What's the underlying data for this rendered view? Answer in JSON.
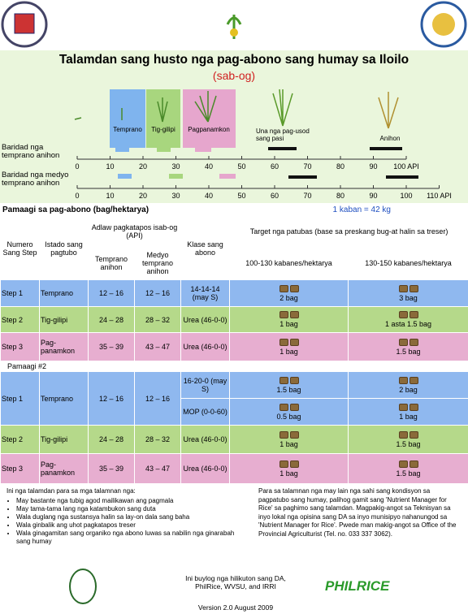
{
  "header": {
    "title": "Talamdan sang husto nga pag-abono sang humay sa Iloilo",
    "subtitle": "(sab-og)"
  },
  "stages": [
    "Temprano",
    "Tig-gilipi",
    "Pagpanamkon",
    "Una nga pag-usod sang pasi",
    "Anihon"
  ],
  "timeline": {
    "rows": [
      {
        "label": "Baridad nga temprano anihon",
        "ticks": [
          0,
          10,
          20,
          30,
          40,
          50,
          60,
          70,
          80,
          90,
          "100 API"
        ]
      },
      {
        "label": "Baridad nga medyo temprano anihon",
        "ticks": [
          0,
          10,
          20,
          30,
          40,
          50,
          60,
          70,
          80,
          90,
          100,
          "110 API"
        ]
      }
    ]
  },
  "table": {
    "title": "Pamaagi sa pag-abono (bag/hektarya)",
    "unit_note": "1 kaban = 42 kg",
    "headers": {
      "step": "Numero Sang Step",
      "stage": "Istado sang pagtubo",
      "api": "Adlaw pagkatapos isab-og (API)",
      "early": "Temprano anihon",
      "medium": "Medyo temprano anihon",
      "fertilizer": "Klase sang abono",
      "target": "Target nga patubas (base sa preskang bug-at halin sa treser)",
      "low": "100-130 kabanes/hektarya",
      "high": "130-150 kabanes/hektarya"
    },
    "method1": [
      {
        "step": "Step 1",
        "stage": "Temprano",
        "early": "12 – 16",
        "medium": "12 – 16",
        "fertilizers": [
          {
            "name": "14-14-14 (may S)",
            "low": "2 bag",
            "high": "3 bag"
          }
        ]
      },
      {
        "step": "Step 2",
        "stage": "Tig-gilipi",
        "early": "24 – 28",
        "medium": "28 – 32",
        "fertilizers": [
          {
            "name": "Urea (46-0-0)",
            "low": "1 bag",
            "high": "1 asta 1.5 bag"
          }
        ]
      },
      {
        "step": "Step 3",
        "stage": "Pag-panamkon",
        "early": "35 – 39",
        "medium": "43 – 47",
        "fertilizers": [
          {
            "name": "Urea (46-0-0)",
            "low": "1 bag",
            "high": "1.5 bag"
          }
        ]
      }
    ],
    "method2_title": "Pamaagi #2",
    "method2": [
      {
        "step": "Step 1",
        "stage": "Temprano",
        "early": "12 – 16",
        "medium": "12 – 16",
        "fertilizers": [
          {
            "name": "16-20-0 (may S)",
            "low": "1.5 bag",
            "high": "2 bag"
          },
          {
            "name": "MOP (0-0-60)",
            "low": "0.5 bag",
            "high": "1 bag"
          }
        ]
      },
      {
        "step": "Step 2",
        "stage": "Tig-gilipi",
        "early": "24 – 28",
        "medium": "28 – 32",
        "fertilizers": [
          {
            "name": "Urea (46-0-0)",
            "low": "1 bag",
            "high": "1.5 bag"
          }
        ]
      },
      {
        "step": "Step 3",
        "stage": "Pag-panamkon",
        "early": "35 – 39",
        "medium": "43 – 47",
        "fertilizers": [
          {
            "name": "Urea (46-0-0)",
            "low": "1 bag",
            "high": "1.5 bag"
          }
        ]
      }
    ]
  },
  "notes": {
    "intro": "Ini nga talamdan para sa mga talamnan nga:",
    "bullets": [
      "May bastante nga tubig agod mailikawan ang pagmala",
      "May tama-tama lang nga katambukon sang duta",
      "Wala duglang nga sustansya halin sa lay-on dala sang baha",
      "Wala ginbalik ang uhot pagkatapos treser",
      "Wala ginagamitan sang organiko nga abono luwas sa nabilin nga ginarabah sang humay"
    ],
    "advice": "Para sa talamnan nga may lain nga sahi sang kondisyon sa pagpatubo sang humay, palihog gamit sang 'Nutrient Manager for Rice' sa paghimo sang talamdan. Magpakig-angot sa Teknisyan sa inyo lokal nga opisina sang DA sa inyo munisipyo nahanungod sa 'Nutrient Manager for Rice'. Pwede man makig-angot sa Office of the Provincial Agriculturist (Tel. no. 033 337 3062)."
  },
  "footer": {
    "credit": "Ini buylog nga hilikuton sang DA, PhilRice, WVSU, and IRRI",
    "logo": "PHILRICE",
    "version": "Version 2.0 August 2009"
  }
}
